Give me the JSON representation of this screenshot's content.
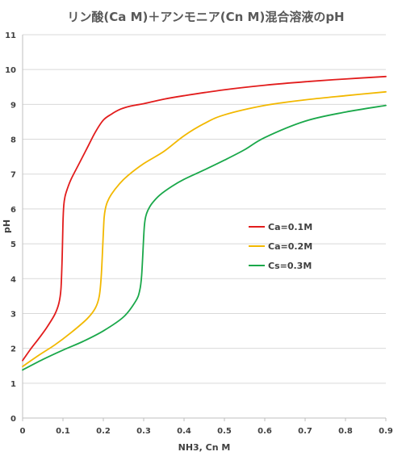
{
  "chart_data": {
    "type": "line",
    "title": "リン酸(Ca M)＋アンモニア(Cn M)混合溶液のpH",
    "xlabel": "NH3, Cn M",
    "ylabel": "pH",
    "xlim": [
      0,
      0.9
    ],
    "ylim": [
      0,
      11
    ],
    "x_ticks": [
      "0",
      "0.1",
      "0.2",
      "0.3",
      "0.4",
      "0.5",
      "0.6",
      "0.7",
      "0.8",
      "0.9"
    ],
    "y_ticks": [
      "0",
      "1",
      "2",
      "3",
      "4",
      "5",
      "6",
      "7",
      "8",
      "9",
      "10",
      "11"
    ],
    "grid": "horizontal",
    "legend_position": "center-right",
    "series": [
      {
        "name": "Ca=0.1M",
        "color": "#e21c1c",
        "x": [
          0,
          0.02,
          0.04,
          0.06,
          0.08,
          0.09,
          0.095,
          0.098,
          0.1,
          0.102,
          0.105,
          0.11,
          0.12,
          0.14,
          0.16,
          0.18,
          0.2,
          0.22,
          0.24,
          0.26,
          0.28,
          0.3,
          0.35,
          0.4,
          0.5,
          0.6,
          0.7,
          0.8,
          0.9
        ],
        "y": [
          1.65,
          1.98,
          2.28,
          2.6,
          2.98,
          3.3,
          3.7,
          4.6,
          5.6,
          6.1,
          6.35,
          6.55,
          6.85,
          7.3,
          7.75,
          8.2,
          8.55,
          8.72,
          8.85,
          8.93,
          8.98,
          9.02,
          9.15,
          9.25,
          9.42,
          9.55,
          9.65,
          9.73,
          9.8
        ]
      },
      {
        "name": "Ca=0.2M",
        "color": "#f2b800",
        "x": [
          0,
          0.04,
          0.08,
          0.12,
          0.16,
          0.18,
          0.19,
          0.195,
          0.2,
          0.202,
          0.205,
          0.21,
          0.22,
          0.24,
          0.26,
          0.3,
          0.35,
          0.4,
          0.45,
          0.5,
          0.6,
          0.7,
          0.8,
          0.9
        ],
        "y": [
          1.48,
          1.8,
          2.1,
          2.45,
          2.85,
          3.15,
          3.5,
          4.1,
          5.3,
          5.75,
          6.0,
          6.2,
          6.42,
          6.72,
          6.95,
          7.3,
          7.65,
          8.1,
          8.45,
          8.7,
          8.97,
          9.13,
          9.25,
          9.36
        ]
      },
      {
        "name": "Cs=0.3M",
        "color": "#1aa84a",
        "x": [
          0,
          0.05,
          0.1,
          0.15,
          0.2,
          0.25,
          0.28,
          0.29,
          0.295,
          0.3,
          0.302,
          0.305,
          0.31,
          0.32,
          0.34,
          0.37,
          0.4,
          0.45,
          0.5,
          0.55,
          0.6,
          0.7,
          0.8,
          0.9
        ],
        "y": [
          1.38,
          1.68,
          1.95,
          2.2,
          2.5,
          2.9,
          3.35,
          3.65,
          4.1,
          5.2,
          5.55,
          5.78,
          5.95,
          6.15,
          6.4,
          6.65,
          6.85,
          7.12,
          7.4,
          7.7,
          8.05,
          8.52,
          8.78,
          8.97
        ]
      }
    ]
  }
}
